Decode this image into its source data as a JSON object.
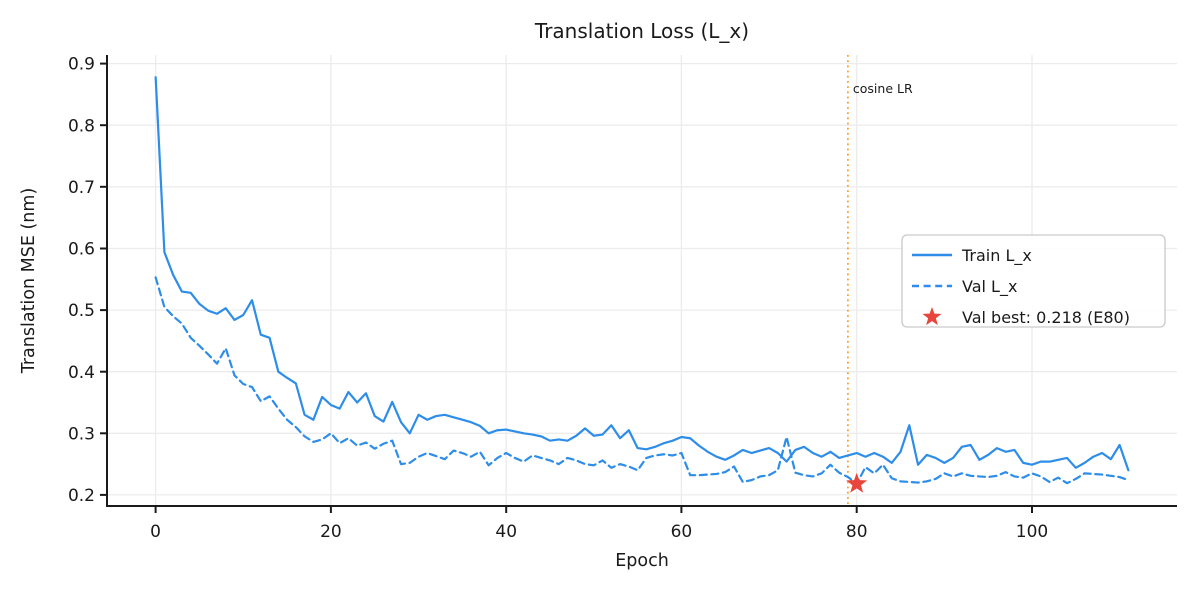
{
  "title": "Translation Loss (L_x)",
  "chart_data": {
    "type": "line",
    "title": "Translation Loss (L_x)",
    "xlabel": "Epoch",
    "ylabel": "Translation MSE (nm)",
    "xlim": [
      -5.55,
      116.55
    ],
    "ylim": [
      0.182,
      0.914
    ],
    "xticks": [
      0,
      20,
      40,
      60,
      80,
      100
    ],
    "yticks": [
      0.2,
      0.3,
      0.4,
      0.5,
      0.6,
      0.7,
      0.8,
      0.9
    ],
    "grid": true,
    "x_start": 0,
    "x_step": 1,
    "n_points": 112,
    "line_color": "#2d8de9",
    "series": [
      {
        "name": "Train L_x",
        "style": "solid",
        "color": "#2d8de9",
        "values": [
          0.878,
          0.594,
          0.557,
          0.53,
          0.528,
          0.51,
          0.499,
          0.494,
          0.503,
          0.484,
          0.492,
          0.516,
          0.46,
          0.455,
          0.4,
          0.39,
          0.381,
          0.33,
          0.322,
          0.359,
          0.346,
          0.34,
          0.367,
          0.35,
          0.365,
          0.328,
          0.319,
          0.351,
          0.318,
          0.3,
          0.33,
          0.322,
          0.328,
          0.33,
          0.326,
          0.322,
          0.318,
          0.312,
          0.3,
          0.305,
          0.306,
          0.303,
          0.3,
          0.298,
          0.295,
          0.288,
          0.29,
          0.288,
          0.296,
          0.308,
          0.296,
          0.298,
          0.313,
          0.292,
          0.305,
          0.276,
          0.274,
          0.278,
          0.284,
          0.288,
          0.294,
          0.292,
          0.28,
          0.27,
          0.262,
          0.257,
          0.264,
          0.273,
          0.268,
          0.272,
          0.276,
          0.268,
          0.254,
          0.273,
          0.278,
          0.268,
          0.262,
          0.27,
          0.26,
          0.264,
          0.268,
          0.262,
          0.268,
          0.262,
          0.252,
          0.27,
          0.313,
          0.249,
          0.265,
          0.26,
          0.252,
          0.26,
          0.278,
          0.281,
          0.257,
          0.265,
          0.276,
          0.27,
          0.273,
          0.252,
          0.249,
          0.254,
          0.254,
          0.257,
          0.26,
          0.244,
          0.252,
          0.262,
          0.268,
          0.258,
          0.281,
          0.24
        ]
      },
      {
        "name": "Val L_x",
        "style": "dashed",
        "color": "#2d8de9",
        "values": [
          0.553,
          0.505,
          0.49,
          0.478,
          0.455,
          0.442,
          0.428,
          0.413,
          0.438,
          0.394,
          0.38,
          0.375,
          0.352,
          0.36,
          0.34,
          0.322,
          0.31,
          0.295,
          0.286,
          0.29,
          0.3,
          0.284,
          0.292,
          0.28,
          0.285,
          0.275,
          0.283,
          0.288,
          0.25,
          0.252,
          0.262,
          0.268,
          0.263,
          0.258,
          0.272,
          0.268,
          0.262,
          0.27,
          0.248,
          0.26,
          0.268,
          0.26,
          0.254,
          0.264,
          0.26,
          0.256,
          0.25,
          0.26,
          0.256,
          0.25,
          0.248,
          0.256,
          0.244,
          0.25,
          0.246,
          0.24,
          0.26,
          0.264,
          0.266,
          0.264,
          0.268,
          0.232,
          0.232,
          0.233,
          0.234,
          0.237,
          0.246,
          0.221,
          0.224,
          0.23,
          0.232,
          0.24,
          0.294,
          0.236,
          0.232,
          0.23,
          0.235,
          0.249,
          0.236,
          0.229,
          0.218,
          0.245,
          0.235,
          0.249,
          0.227,
          0.222,
          0.221,
          0.22,
          0.222,
          0.226,
          0.235,
          0.23,
          0.235,
          0.231,
          0.23,
          0.229,
          0.231,
          0.237,
          0.23,
          0.228,
          0.235,
          0.23,
          0.221,
          0.228,
          0.219,
          0.226,
          0.235,
          0.234,
          0.233,
          0.231,
          0.229,
          0.224
        ]
      }
    ],
    "annotations": {
      "vline": {
        "x": 79,
        "label": "cosine LR",
        "color": "#ffa02e",
        "style": "dotted"
      },
      "best_marker": {
        "x": 80,
        "y": 0.218,
        "marker": "star",
        "color": "#e8463c"
      }
    },
    "legend": {
      "position": "center right",
      "entries": [
        {
          "sample": "solid-line",
          "label": "Train L_x"
        },
        {
          "sample": "dashed-line",
          "label": "Val L_x"
        },
        {
          "sample": "star",
          "label": "Val best: 0.218 (E80)"
        }
      ]
    },
    "colors": {
      "grid": "#ececec",
      "spine": "#1a1a1a",
      "text": "#1a1a1a",
      "legend_border": "#c9c9c9"
    }
  }
}
